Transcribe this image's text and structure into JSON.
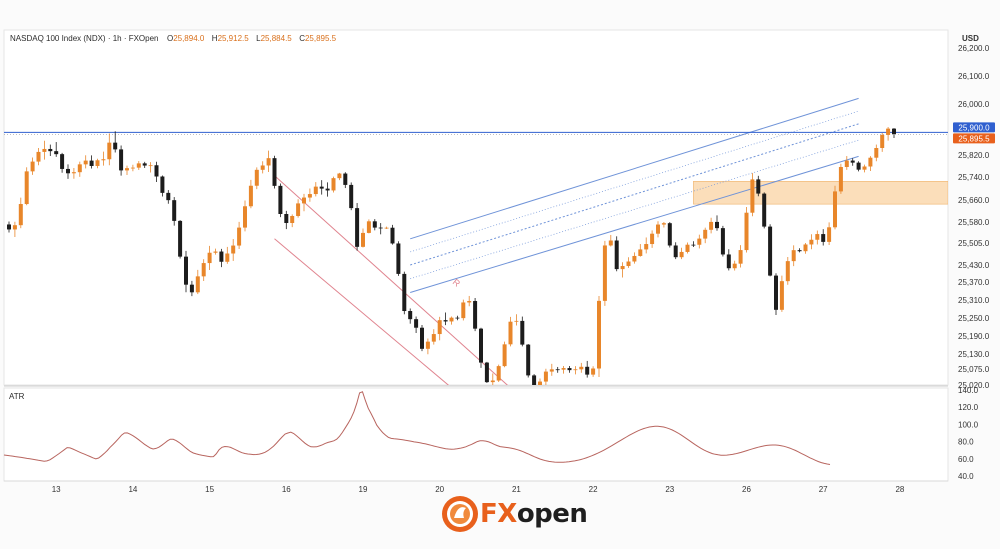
{
  "header": {
    "instrument": "NASDAQ 100 Index (NDX) · 1h · FXOpen",
    "o_label": "O",
    "o_value": "25,894.0",
    "h_label": "H",
    "h_value": "25,912.5",
    "l_label": "L",
    "l_value": "25,884.5",
    "c_label": "C",
    "c_value": "25,895.5"
  },
  "logo": {
    "part1": "FX",
    "part2": "open"
  },
  "colors": {
    "up": "#e8862a",
    "down": "#1c1c1c",
    "channel_up": "#6f93d8",
    "channel_down": "#e0848f",
    "atr": "#b8655f",
    "zone": "#fad8ae",
    "price_line": "#2f5fcf",
    "last_price": "#e8601c"
  },
  "chart_data": {
    "type": "candlestick",
    "price_axis": {
      "unit": "USD",
      "ticks": [
        "26,200.0",
        "26,100.0",
        "26,000.0",
        "25,820.0",
        "25,740.0",
        "25,660.0",
        "25,580.0",
        "25,505.0",
        "25,430.0",
        "25,370.0",
        "25,310.0",
        "25,250.0",
        "25,190.0",
        "25,130.0",
        "25,075.0",
        "25,020.0"
      ],
      "tick_values": [
        26200,
        26100,
        26000,
        25820,
        25740,
        25660,
        25580,
        25505,
        25430,
        25370,
        25310,
        25250,
        25190,
        25130,
        25075,
        25020
      ]
    },
    "price_labels": {
      "level": "25,900.0",
      "last": "25,895.5"
    },
    "x_ticks": [
      "13",
      "14",
      "15",
      "16",
      "19",
      "20",
      "21",
      "22",
      "23",
      "26",
      "27",
      "28"
    ],
    "x_tick_index": [
      8,
      21,
      34,
      47,
      60,
      73,
      86,
      99,
      112,
      125,
      138,
      151
    ],
    "channel_label": "R",
    "candles": [
      [
        25571.2,
        25581.7,
        25542.5,
        25553.4
      ],
      [
        25553.4,
        25581.0,
        25526.4,
        25568.6
      ],
      [
        25568.6,
        25668.2,
        25557.9,
        25645.4
      ],
      [
        25645.4,
        25775.3,
        25641.0,
        25760.5
      ],
      [
        25760.5,
        25810.7,
        25747.9,
        25796.0
      ],
      [
        25796.0,
        25844.9,
        25782.9,
        25830.9
      ],
      [
        25830.9,
        25870.3,
        25803.4,
        25841.3
      ],
      [
        25841.3,
        25856.8,
        25816.4,
        25833.6
      ],
      [
        25833.6,
        25865.7,
        25813.2,
        25823.0
      ],
      [
        25823.0,
        25827.6,
        25755.4,
        25769.3
      ],
      [
        25769.3,
        25786.1,
        25733.6,
        25753.5
      ],
      [
        25753.5,
        25772.8,
        25734.1,
        25757.5
      ],
      [
        25757.5,
        25795.8,
        25740.6,
        25786.0
      ],
      [
        25786.0,
        25819.0,
        25771.2,
        25799.6
      ],
      [
        25799.6,
        25818.8,
        25770.7,
        25780.1
      ],
      [
        25780.1,
        25806.5,
        25771.9,
        25800.8
      ],
      [
        25800.8,
        25831.8,
        25781.3,
        25804.6
      ],
      [
        25804.6,
        25896.2,
        25782.7,
        25863.6
      ],
      [
        25863.6,
        25903.8,
        25828.9,
        25839.8
      ],
      [
        25839.8,
        25853.5,
        25744.9,
        25764.0
      ],
      [
        25764.0,
        25781.2,
        25747.4,
        25772.2
      ],
      [
        25772.2,
        25784.4,
        25761.0,
        25774.0
      ],
      [
        25774.0,
        25798.0,
        25765.7,
        25789.6
      ],
      [
        25789.6,
        25795.2,
        25772.8,
        25781.6
      ],
      [
        25781.6,
        25794.3,
        25756.3,
        25782.7
      ],
      [
        25782.7,
        25795.4,
        25722.4,
        25741.8
      ],
      [
        25741.8,
        25745.4,
        25672.0,
        25684.8
      ],
      [
        25684.8,
        25694.6,
        25646.4,
        25659.4
      ],
      [
        25659.4,
        25670.2,
        25567.0,
        25584.0
      ],
      [
        25584.0,
        25586.8,
        25452.3,
        25458.5
      ],
      [
        25458.5,
        25478.0,
        25336.0,
        25361.1
      ],
      [
        25361.1,
        25373.8,
        25322.9,
        25335.6
      ],
      [
        25335.6,
        25412.8,
        25329.7,
        25389.9
      ],
      [
        25389.9,
        25449.8,
        25373.6,
        25436.6
      ],
      [
        25436.6,
        25495.2,
        25412.4,
        25471.8
      ],
      [
        25471.8,
        25485.9,
        25465.4,
        25475.9
      ],
      [
        25475.9,
        25485.0,
        25422.6,
        25441.0
      ],
      [
        25441.0,
        25491.7,
        25434.0,
        25469.2
      ],
      [
        25469.2,
        25519.2,
        25443.9,
        25496.3
      ],
      [
        25496.3,
        25580.4,
        25484.7,
        25560.0
      ],
      [
        25560.0,
        25658.3,
        25546.7,
        25637.2
      ],
      [
        25637.2,
        25730.0,
        25629.9,
        25709.6
      ],
      [
        25709.6,
        25775.0,
        25697.8,
        25766.1
      ],
      [
        25766.1,
        25797.3,
        25753.0,
        25781.9
      ],
      [
        25781.9,
        25835.3,
        25758.0,
        25808.5
      ],
      [
        25808.5,
        25817.4,
        25699.8,
        25709.2
      ],
      [
        25709.2,
        25717.2,
        25597.9,
        25609.1
      ],
      [
        25609.1,
        25620.5,
        25554.6,
        25576.4
      ],
      [
        25576.4,
        25607.6,
        25561.7,
        25601.8
      ],
      [
        25601.8,
        25662.5,
        25596.1,
        25647.6
      ],
      [
        25647.6,
        25681.3,
        25619.1,
        25668.5
      ],
      [
        25668.5,
        25699.8,
        25653.6,
        25680.7
      ],
      [
        25680.7,
        25722.3,
        25672.5,
        25706.5
      ],
      [
        25706.5,
        25729.1,
        25678.8,
        25699.6
      ],
      [
        25699.6,
        25721.4,
        25671.6,
        25693.2
      ],
      [
        25693.2,
        25741.3,
        25685.9,
        25736.0
      ],
      [
        25736.0,
        25755.0,
        25729.2,
        25752.6
      ],
      [
        25752.6,
        25757.5,
        25701.6,
        25712.5
      ],
      [
        25712.5,
        25721.1,
        25623.0,
        25630.5
      ],
      [
        25630.5,
        25648.9,
        25479.1,
        25491.9
      ],
      [
        25491.9,
        25556.7,
        25489.8,
        25541.0
      ],
      [
        25541.0,
        25589.6,
        25539.4,
        25582.5
      ],
      [
        25582.5,
        25590.5,
        25550.3,
        25560.0
      ],
      [
        25560.0,
        25576.2,
        25536.0,
        25559.1
      ],
      [
        25559.1,
        25563.5,
        25555.0,
        25559.6
      ],
      [
        25559.6,
        25569.6,
        25499.4,
        25503.4
      ],
      [
        25503.4,
        25511.1,
        25391.6,
        25398.6
      ],
      [
        25398.6,
        25406.5,
        25262.3,
        25273.3
      ],
      [
        25273.3,
        25281.8,
        25231.0,
        25246.1
      ],
      [
        25246.1,
        25255.0,
        25200.0,
        25217.6
      ],
      [
        25217.6,
        25226.6,
        25139.5,
        25147.3
      ],
      [
        25147.3,
        25181.8,
        25129.0,
        25171.2
      ],
      [
        25171.2,
        25212.8,
        25161.4,
        25196.5
      ],
      [
        25196.5,
        25253.9,
        25175.6,
        25242.8
      ],
      [
        25242.8,
        25268.3,
        25226.4,
        25238.5
      ],
      [
        25238.5,
        25255.2,
        25228.0,
        25251.1
      ],
      [
        25251.1,
        25257.7,
        25242.6,
        25249.6
      ],
      [
        25249.6,
        25311.3,
        25241.8,
        25301.8
      ],
      [
        25301.8,
        25323.5,
        25289.2,
        25306.6
      ],
      [
        25306.6,
        25316.8,
        25206.2,
        25214.5
      ],
      [
        25214.5,
        25217.5,
        25079.1,
        25098.5
      ],
      [
        25098.5,
        25101.3,
        25026.8,
        25029.9
      ],
      [
        25029.9,
        25059.8,
        25010.0,
        25035.4
      ],
      [
        25035.4,
        25091.1,
        25030.2,
        25085.6
      ],
      [
        25085.6,
        25171.2,
        25081.2,
        25162.2
      ],
      [
        25162.2,
        25253.6,
        25155.6,
        25237.7
      ],
      [
        25237.7,
        25262.6,
        25225.2,
        25240.3
      ],
      [
        25240.3,
        25254.8,
        25155.4,
        25161.3
      ],
      [
        25161.3,
        25163.2,
        25045.8,
        25053.0
      ],
      [
        25053.0,
        25057.3,
        25004.0,
        25008.7
      ],
      [
        25008.7,
        25042.4,
        25002.4,
        25031.8
      ],
      [
        25031.8,
        25076.0,
        25017.6,
        25066.1
      ],
      [
        25066.1,
        25093.9,
        25051.6,
        25073.9
      ],
      [
        25073.9,
        25082.5,
        25062.0,
        25072.7
      ],
      [
        25072.7,
        25086.0,
        25059.2,
        25078.4
      ],
      [
        25078.4,
        25085.9,
        25061.9,
        25071.1
      ],
      [
        25071.1,
        25085.6,
        25056.4,
        25073.9
      ],
      [
        25073.9,
        25097.4,
        25062.1,
        25083.1
      ],
      [
        25083.1,
        25104.6,
        25045.5,
        25055.7
      ],
      [
        25055.7,
        25084.9,
        25047.8,
        25076.8
      ],
      [
        25076.8,
        25323.4,
        25047.4,
        25307.1
      ],
      [
        25307.1,
        25512.6,
        25290.5,
        25496.6
      ],
      [
        25496.6,
        25533.8,
        25493.1,
        25513.9
      ],
      [
        25513.9,
        25528.9,
        25407.9,
        25415.5
      ],
      [
        25415.5,
        25439.5,
        25385.8,
        25426.4
      ],
      [
        25426.4,
        25456.3,
        25419.7,
        25441.9
      ],
      [
        25441.9,
        25473.0,
        25434.5,
        25460.8
      ],
      [
        25460.8,
        25501.5,
        25458.4,
        25483.1
      ],
      [
        25483.1,
        25524.8,
        25469.5,
        25501.5
      ],
      [
        25501.5,
        25549.9,
        25488.3,
        25538.2
      ],
      [
        25538.2,
        25582.6,
        25524.9,
        25570.9
      ],
      [
        25570.9,
        25579.8,
        25560.4,
        25575.8
      ],
      [
        25575.8,
        25579.7,
        25489.7,
        25496.5
      ],
      [
        25496.5,
        25507.6,
        25450.1,
        25456.6
      ],
      [
        25456.6,
        25488.6,
        25450.0,
        25474.5
      ],
      [
        25474.5,
        25506.7,
        25469.3,
        25499.2
      ],
      [
        25499.2,
        25511.3,
        25491.3,
        25499.0
      ],
      [
        25499.0,
        25534.8,
        25486.4,
        25520.7
      ],
      [
        25520.7,
        25559.8,
        25504.4,
        25552.1
      ],
      [
        25552.1,
        25595.5,
        25539.3,
        25580.3
      ],
      [
        25580.3,
        25604.1,
        25548.8,
        25558.1
      ],
      [
        25558.1,
        25566.0,
        25458.9,
        25465.9
      ],
      [
        25465.9,
        25483.8,
        25410.8,
        25418.6
      ],
      [
        25418.6,
        25444.7,
        25410.4,
        25434.5
      ],
      [
        25434.5,
        25497.6,
        25421.3,
        25480.9
      ],
      [
        25480.9,
        25634.7,
        25472.8,
        25613.8
      ],
      [
        25613.8,
        25754.0,
        25600.7,
        25731.7
      ],
      [
        25731.7,
        25744.3,
        25673.0,
        25682.3
      ],
      [
        25682.3,
        25686.5,
        25557.1,
        25563.6
      ],
      [
        25563.6,
        25571.9,
        25390.0,
        25392.6
      ],
      [
        25392.6,
        25400.8,
        25260.0,
        25277.3
      ],
      [
        25277.3,
        25392.6,
        25270.3,
        25373.0
      ],
      [
        25373.0,
        25457.3,
        25360.7,
        25443.2
      ],
      [
        25443.2,
        25497.1,
        25426.0,
        25480.6
      ],
      [
        25480.6,
        25487.3,
        25473.2,
        25477.0
      ],
      [
        25477.0,
        25504.8,
        25468.4,
        25500.0
      ],
      [
        25500.0,
        25536.4,
        25483.9,
        25516.6
      ],
      [
        25516.6,
        25549.5,
        25500.0,
        25536.9
      ],
      [
        25536.9,
        25554.5,
        25496.4,
        25509.0
      ],
      [
        25509.0,
        25578.5,
        25498.2,
        25561.1
      ],
      [
        25561.1,
        25709.4,
        25553.8,
        25689.9
      ],
      [
        25689.9,
        25788.2,
        25681.4,
        25776.4
      ],
      [
        25776.4,
        25816.2,
        25766.0,
        25799.8
      ],
      [
        25799.8,
        25808.2,
        25780.8,
        25792.2
      ],
      [
        25792.2,
        25797.1,
        25760.6,
        25766.7
      ],
      [
        25766.7,
        25785.2,
        25756.7,
        25778.2
      ],
      [
        25778.2,
        25815.8,
        25761.6,
        25810.2
      ],
      [
        25810.2,
        25856.8,
        25797.3,
        25844.7
      ],
      [
        25844.7,
        25897.9,
        25831.0,
        25890.9
      ],
      [
        25890.9,
        25918.7,
        25870.6,
        25913.1
      ],
      [
        25913.1,
        25914.8,
        25879.8,
        25894.0
      ]
    ],
    "atr": {
      "label": "ATR",
      "ticks": [
        "140.0",
        "120.0",
        "100.0",
        "80.0",
        "60.0",
        "40.0"
      ],
      "tick_values": [
        140,
        120,
        100,
        80,
        60,
        40
      ],
      "values": [
        64.4,
        64.0,
        63.5,
        63.1,
        62.6,
        62.1,
        61.6,
        61.0,
        60.5,
        60.0,
        59.5,
        58.9,
        58.3,
        57.8,
        57.2,
        57.5,
        58.8,
        61.0,
        63.3,
        65.6,
        68.0,
        70.5,
        73.0,
        72.7,
        71.4,
        69.9,
        68.3,
        66.9,
        65.5,
        64.1,
        62.7,
        61.2,
        60.0,
        60.9,
        63.5,
        66.4,
        69.7,
        73.4,
        76.6,
        80.1,
        83.7,
        87.5,
        90.0,
        90.1,
        88.6,
        86.7,
        84.5,
        82.1,
        79.4,
        76.9,
        74.6,
        72.6,
        71.4,
        72.1,
        73.5,
        75.7,
        78.3,
        80.9,
        82.8,
        82.7,
        81.2,
        79.1,
        76.6,
        73.7,
        71.0,
        68.5,
        66.7,
        65.7,
        64.9,
        64.2,
        63.6,
        62.9,
        62.3,
        62.6,
        65.7,
        70.6,
        73.4,
        74.3,
        74.1,
        73.2,
        71.8,
        70.1,
        68.5,
        67.1,
        66.2,
        65.6,
        65.2,
        64.9,
        65.0,
        65.5,
        66.3,
        67.6,
        69.5,
        72.0,
        74.8,
        78.2,
        81.9,
        85.5,
        88.8,
        90.0,
        90.9,
        89.4,
        86.8,
        83.9,
        80.8,
        78.0,
        75.7,
        74.0,
        73.8,
        74.0,
        75.0,
        76.3,
        77.9,
        79.1,
        80.0,
        80.9,
        82.8,
        86.3,
        90.7,
        96.0,
        101.4,
        107.1,
        114.6,
        124.6,
        136.6,
        137.9,
        127.7,
        118.8,
        112.6,
        105.8,
        99.1,
        94.5,
        90.6,
        87.6,
        85.0,
        83.7,
        83.3,
        83.0,
        82.6,
        82.1,
        81.5,
        81.0,
        80.3,
        79.7,
        79.2,
        78.6,
        77.9,
        77.3,
        76.5,
        75.7,
        74.8,
        73.9,
        73.1,
        72.4,
        71.8,
        71.4,
        71.2,
        71.3,
        71.6,
        72.2,
        73.0,
        74.0,
        75.3,
        76.8,
        78.4,
        80.0,
        80.9,
        81.0,
        80.6,
        79.6,
        78.2,
        76.7,
        75.3,
        74.2,
        73.7,
        73.3,
        72.8,
        72.2,
        71.5,
        70.6,
        69.5,
        68.2,
        66.8,
        65.3,
        63.8,
        62.3,
        60.9,
        59.7,
        58.6,
        57.7,
        57.0,
        56.5,
        56.2,
        56.0,
        56.0,
        56.1,
        56.3,
        56.6,
        57.1,
        57.6,
        58.3,
        59.1,
        60.0,
        61.1,
        62.3,
        63.6,
        65.0,
        66.5,
        68.1,
        69.8,
        71.6,
        73.5,
        75.4,
        77.4,
        79.4,
        81.4,
        83.4,
        85.3,
        87.3,
        89.1,
        90.8,
        92.4,
        93.8,
        95.1,
        96.1,
        97.0,
        97.5,
        97.8,
        97.8,
        97.5,
        97.0,
        96.1,
        94.9,
        93.5,
        91.9,
        90.0,
        87.9,
        85.7,
        83.4,
        81.0,
        78.7,
        76.4,
        74.2,
        72.2,
        70.3,
        68.7,
        67.3,
        66.1,
        65.2,
        64.6,
        64.2,
        64.1,
        64.3,
        64.6,
        65.1,
        65.8,
        66.6,
        67.5,
        68.5,
        69.5,
        70.6,
        71.6,
        72.6,
        73.5,
        74.3,
        75.0,
        75.6,
        75.9,
        76.1,
        76.0,
        75.7,
        75.2,
        74.5,
        73.5,
        72.4,
        71.1,
        69.6,
        68.0,
        66.3,
        64.6,
        62.9,
        61.2,
        59.6,
        58.1,
        56.8,
        55.6,
        54.6,
        53.9,
        53.4
      ]
    },
    "annotations": {
      "up_channel": {
        "x": [
          68,
          144
        ],
        "upper": [
          25520,
          26020
        ],
        "mid": [
          25430,
          25930
        ],
        "lower": [
          25335,
          25815
        ],
        "color": "#6f93d8"
      },
      "down_channel": {
        "x": [
          45,
          85
        ],
        "upper": [
          25745,
          25010
        ],
        "lower": [
          25520,
          24840
        ],
        "color": "#e0848f"
      },
      "zone": {
        "x_start": 116,
        "y_low": 25645,
        "y_high": 25725
      },
      "resistance_level": 25900
    }
  }
}
